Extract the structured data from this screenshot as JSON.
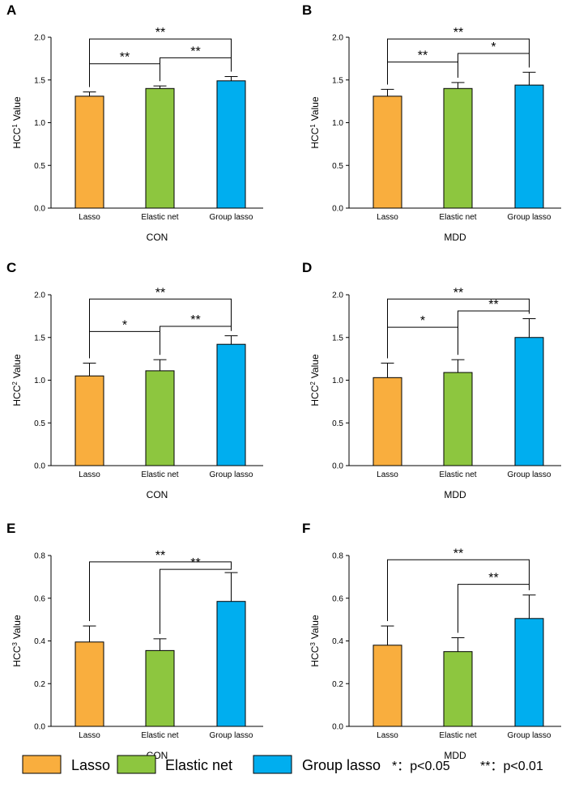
{
  "colors": {
    "lasso": "#F9AE3E",
    "elastic_net": "#8DC63F",
    "group_lasso": "#00AEEF"
  },
  "chart_data": [
    {
      "type": "bar",
      "panel": "A",
      "title": "",
      "xlabel": "CON",
      "ylabel_base": "HCC",
      "ylabel_sup": "1",
      "ylabel_tail": "Value",
      "categories": [
        "Lasso",
        "Elastic net",
        "Group lasso"
      ],
      "values": [
        1.31,
        1.4,
        1.49
      ],
      "errors": [
        0.05,
        0.03,
        0.05
      ],
      "ylim": [
        0,
        2.0
      ],
      "yticks": [
        "0.0",
        "0.5",
        "1.0",
        "1.5",
        "2.0"
      ],
      "significance": [
        {
          "from": 0,
          "to": 2,
          "label": "**",
          "level_value": 1.98
        },
        {
          "from": 0,
          "to": 1,
          "label": "**",
          "level_value": 1.69
        },
        {
          "from": 1,
          "to": 2,
          "label": "**",
          "level_value": 1.76
        }
      ]
    },
    {
      "type": "bar",
      "panel": "B",
      "title": "",
      "xlabel": "MDD",
      "ylabel_base": "HCC",
      "ylabel_sup": "1",
      "ylabel_tail": "Value",
      "categories": [
        "Lasso",
        "Elastic net",
        "Group lasso"
      ],
      "values": [
        1.31,
        1.4,
        1.44
      ],
      "errors": [
        0.08,
        0.07,
        0.15
      ],
      "ylim": [
        0,
        2.0
      ],
      "yticks": [
        "0.0",
        "0.5",
        "1.0",
        "1.5",
        "2.0"
      ],
      "significance": [
        {
          "from": 0,
          "to": 2,
          "label": "**",
          "level_value": 1.98
        },
        {
          "from": 0,
          "to": 1,
          "label": "**",
          "level_value": 1.71
        },
        {
          "from": 1,
          "to": 2,
          "label": "*",
          "level_value": 1.81
        }
      ]
    },
    {
      "type": "bar",
      "panel": "C",
      "title": "",
      "xlabel": "CON",
      "ylabel_base": "HCC",
      "ylabel_sup": "2",
      "ylabel_tail": "Value",
      "categories": [
        "Lasso",
        "Elastic net",
        "Group lasso"
      ],
      "values": [
        1.05,
        1.11,
        1.42
      ],
      "errors": [
        0.15,
        0.13,
        0.1
      ],
      "ylim": [
        0,
        2.0
      ],
      "yticks": [
        "0.0",
        "0.5",
        "1.0",
        "1.5",
        "2.0"
      ],
      "significance": [
        {
          "from": 0,
          "to": 2,
          "label": "**",
          "level_value": 1.95
        },
        {
          "from": 0,
          "to": 1,
          "label": "*",
          "level_value": 1.57
        },
        {
          "from": 1,
          "to": 2,
          "label": "**",
          "level_value": 1.63
        }
      ]
    },
    {
      "type": "bar",
      "panel": "D",
      "title": "",
      "xlabel": "MDD",
      "ylabel_base": "HCC",
      "ylabel_sup": "2",
      "ylabel_tail": "Value",
      "categories": [
        "Lasso",
        "Elastic net",
        "Group lasso"
      ],
      "values": [
        1.03,
        1.09,
        1.5
      ],
      "errors": [
        0.17,
        0.15,
        0.22
      ],
      "ylim": [
        0,
        2.0
      ],
      "yticks": [
        "0.0",
        "0.5",
        "1.0",
        "1.5",
        "2.0"
      ],
      "significance": [
        {
          "from": 0,
          "to": 2,
          "label": "**",
          "level_value": 1.95
        },
        {
          "from": 0,
          "to": 1,
          "label": "*",
          "level_value": 1.62
        },
        {
          "from": 1,
          "to": 2,
          "label": "**",
          "level_value": 1.81
        }
      ]
    },
    {
      "type": "bar",
      "panel": "E",
      "title": "",
      "xlabel": "CON",
      "ylabel_base": "HCC",
      "ylabel_sup": "3",
      "ylabel_tail": "Value",
      "categories": [
        "Lasso",
        "Elastic net",
        "Group lasso"
      ],
      "values": [
        0.395,
        0.355,
        0.585
      ],
      "errors": [
        0.075,
        0.055,
        0.135
      ],
      "ylim": [
        0,
        0.8
      ],
      "yticks": [
        "0.0",
        "0.2",
        "0.4",
        "0.6",
        "0.8"
      ],
      "significance": [
        {
          "from": 0,
          "to": 2,
          "label": "**",
          "level_value": 0.77
        },
        {
          "from": 1,
          "to": 2,
          "label": "**",
          "level_value": 0.735
        }
      ]
    },
    {
      "type": "bar",
      "panel": "F",
      "title": "",
      "xlabel": "MDD",
      "ylabel_base": "HCC",
      "ylabel_sup": "3",
      "ylabel_tail": "Value",
      "categories": [
        "Lasso",
        "Elastic net",
        "Group lasso"
      ],
      "values": [
        0.38,
        0.35,
        0.505
      ],
      "errors": [
        0.09,
        0.065,
        0.11
      ],
      "ylim": [
        0,
        0.8
      ],
      "yticks": [
        "0.0",
        "0.2",
        "0.4",
        "0.6",
        "0.8"
      ],
      "significance": [
        {
          "from": 0,
          "to": 2,
          "label": "**",
          "level_value": 0.78
        },
        {
          "from": 1,
          "to": 2,
          "label": "**",
          "level_value": 0.665
        }
      ]
    }
  ],
  "legend": {
    "items": [
      {
        "label": "Lasso",
        "color": "#F9AE3E"
      },
      {
        "label": "Elastic net",
        "color": "#8DC63F"
      },
      {
        "label": "Group lasso",
        "color": "#00AEEF"
      }
    ],
    "sig1": "*：p<0.05",
    "sig2": "**：p<0.01"
  }
}
